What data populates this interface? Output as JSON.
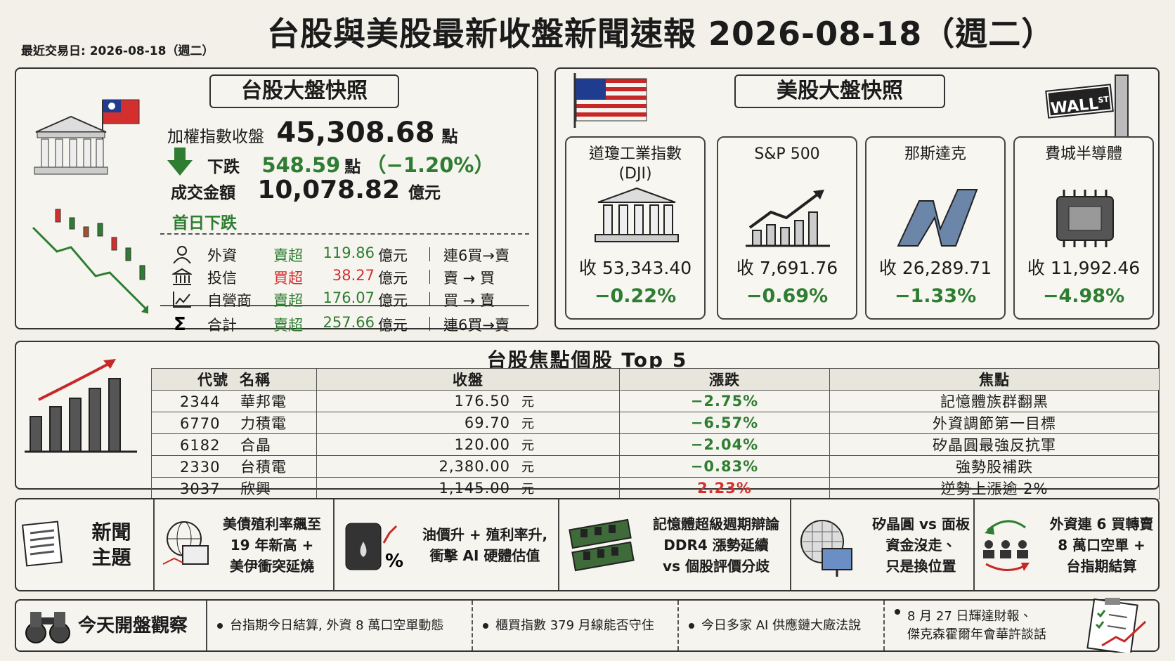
{
  "header": {
    "title": "台股與美股最新收盤新聞速報  2026-08-18（週二）",
    "last_trade": "最近交易日: 2026-08-18（週二）"
  },
  "tw": {
    "title": "台股大盤快照",
    "index_label": "加權指數收盤",
    "index_value": "45,308.68",
    "index_unit": "點",
    "change_label": "下跌",
    "change_value": "548.59",
    "change_unit": "點",
    "change_pct": "（−1.20%）",
    "turnover_label": "成交金額",
    "turnover_value": "10,078.82",
    "turnover_unit": "億元",
    "note": "首日下跌",
    "institutions": [
      {
        "name": "外資",
        "action": "賣超",
        "amount": "119.86",
        "unit": "億元",
        "trend": "連6買→賣",
        "color": "#2e7d32"
      },
      {
        "name": "投信",
        "action": "買超",
        "amount": "38.27",
        "unit": "億元",
        "trend": "賣 → 買",
        "color": "#d32f2f"
      },
      {
        "name": "自營商",
        "action": "賣超",
        "amount": "176.07",
        "unit": "億元",
        "trend": "買 → 賣",
        "color": "#2e7d32"
      },
      {
        "name": "合計",
        "action": "賣超",
        "amount": "257.66",
        "unit": "億元",
        "trend": "連6買→賣",
        "color": "#2e7d32"
      }
    ]
  },
  "us": {
    "title": "美股大盤快照",
    "sign": [
      "WALL",
      "ST"
    ],
    "close_label": "收",
    "indices": [
      {
        "name": [
          "道瓊工業指數",
          "(DJI)"
        ],
        "close": "53,343.40",
        "pct": "−0.22%",
        "color": "#2e7d32"
      },
      {
        "name": [
          "S&P 500"
        ],
        "close": "7,691.76",
        "pct": "−0.69%",
        "color": "#2e7d32"
      },
      {
        "name": [
          "那斯達克"
        ],
        "close": "26,289.71",
        "pct": "−1.33%",
        "color": "#2e7d32"
      },
      {
        "name": [
          "費城半導體"
        ],
        "close": "11,992.46",
        "pct": "−4.98%",
        "color": "#2e7d32"
      }
    ]
  },
  "stocks": {
    "title": "台股焦點個股  Top 5",
    "headers": [
      "代號",
      "名稱",
      "收盤",
      "漲跌",
      "焦點"
    ],
    "rows": [
      {
        "code": "2344",
        "name": "華邦電",
        "close": "176.50",
        "unit": "元",
        "change": "−2.75%",
        "focus": "記憶體族群翻黑",
        "color": "#2e7d32"
      },
      {
        "code": "6770",
        "name": "力積電",
        "close": "69.70",
        "unit": "元",
        "change": "−6.57%",
        "focus": "外資調節第一目標",
        "color": "#2e7d32"
      },
      {
        "code": "6182",
        "name": "合晶",
        "close": "120.00",
        "unit": "元",
        "change": "−2.04%",
        "focus": "矽晶圓最強反抗軍",
        "color": "#2e7d32"
      },
      {
        "code": "2330",
        "name": "台積電",
        "close": "2,380.00",
        "unit": "元",
        "change": "−0.83%",
        "focus": "強勢股補跌",
        "color": "#2e7d32"
      },
      {
        "code": "3037",
        "name": "欣興",
        "close": "1,145.00",
        "unit": "元",
        "change": "2.23%",
        "focus": "逆勢上漲逾 2%",
        "color": "#d32f2f"
      }
    ]
  },
  "news": {
    "label": [
      "新聞",
      "主題"
    ],
    "items": [
      [
        "美債殖利率飆至",
        "19 年新高 +",
        "美伊衝突延燒"
      ],
      [
        "油價升 + 殖利率升,",
        "衝擊 AI 硬體估值"
      ],
      [
        "記憶體超級週期辯論",
        "DDR4 漲勢延續",
        "vs 個股評價分歧"
      ],
      [
        "矽晶圓 vs 面板",
        "資金沒走、",
        "只是換位置"
      ],
      [
        "外資連 6 買轉賣",
        "8 萬口空單 +",
        "台指期結算"
      ]
    ]
  },
  "watch": {
    "label": "今天開盤觀察",
    "items": [
      [
        "台指期今日結算, 外資 8 萬口空單動態"
      ],
      [
        "櫃買指數 379 月線能否守住"
      ],
      [
        "今日多家 AI 供應鏈大廠法說"
      ],
      [
        "8 月 27 日輝達財報、",
        "傑克森霍爾年會華許談話"
      ]
    ]
  }
}
